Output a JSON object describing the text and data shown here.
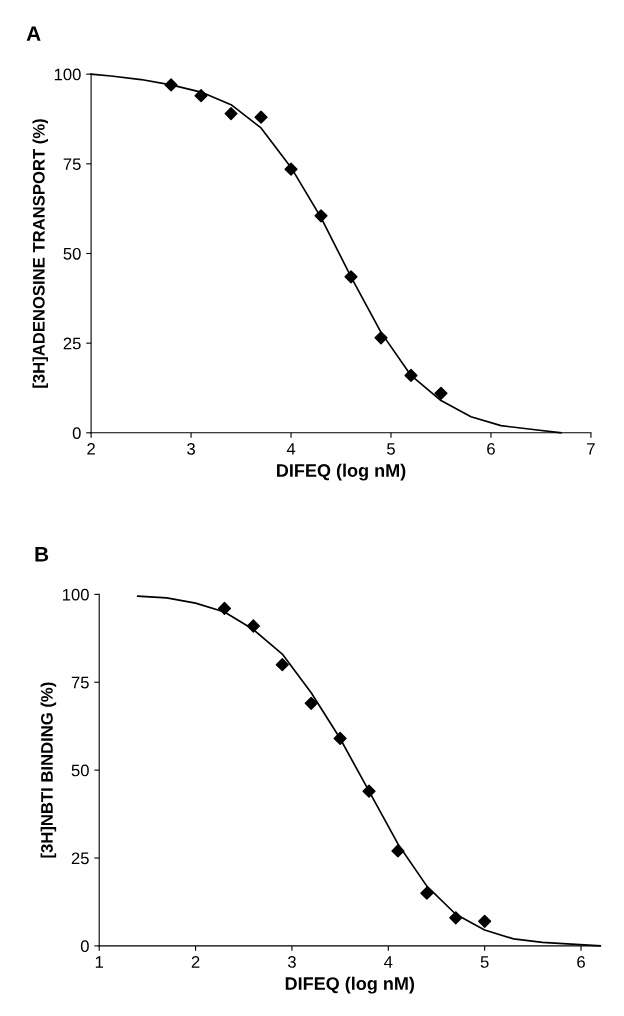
{
  "chart_data": [
    {
      "type": "scatter",
      "title": "A",
      "xlabel": "DIFEQ (log nM)",
      "ylabel": "[3H]ADENOSINE TRANSPORT (%)",
      "xlim": [
        2,
        7
      ],
      "xticks": [
        2,
        3,
        4,
        5,
        6,
        7
      ],
      "ylim": [
        0,
        100
      ],
      "yticks": [
        0,
        25,
        50,
        75,
        100
      ],
      "grid": false,
      "legend": false,
      "series": [
        {
          "color": "#000000",
          "marker": "diamond",
          "x": [
            2.8,
            3.1,
            3.4,
            3.7,
            4.0,
            4.3,
            4.6,
            4.9,
            5.2,
            5.5
          ],
          "values": [
            97,
            94,
            89,
            88,
            73.5,
            60.5,
            43.5,
            26.5,
            16,
            11
          ]
        },
        {
          "type": "line",
          "color": "#000000",
          "marker": "none",
          "line_style": "solid",
          "x": [
            2,
            2.2,
            2.5,
            2.8,
            3.1,
            3.4,
            3.7,
            4.0,
            4.3,
            4.6,
            4.9,
            5.2,
            5.5,
            5.8,
            6.1,
            6.4,
            6.7
          ],
          "values": [
            100,
            99.5,
            98.5,
            97,
            95,
            91.5,
            85,
            74,
            60,
            43.5,
            28,
            16,
            9,
            4.5,
            2,
            1,
            0
          ]
        }
      ]
    },
    {
      "type": "scatter",
      "title": "B",
      "xlabel": "DIFEQ (log nM)",
      "ylabel": "[3H]NBTI BINDING (%)",
      "xlim": [
        1,
        6.2
      ],
      "xticks": [
        1,
        2,
        3,
        4,
        5,
        6
      ],
      "ylim": [
        0,
        100
      ],
      "yticks": [
        0,
        25,
        50,
        75,
        100
      ],
      "grid": false,
      "legend": false,
      "series": [
        {
          "color": "#000000",
          "marker": "diamond",
          "x": [
            2.3,
            2.6,
            2.9,
            3.2,
            3.5,
            3.8,
            4.1,
            4.4,
            4.7,
            5.0
          ],
          "values": [
            96,
            91,
            80,
            69,
            59,
            44,
            27,
            15,
            8,
            7
          ]
        },
        {
          "type": "line",
          "color": "#000000",
          "marker": "none",
          "line_style": "solid",
          "x": [
            1.4,
            1.7,
            2.0,
            2.3,
            2.6,
            2.9,
            3.2,
            3.5,
            3.8,
            4.1,
            4.4,
            4.7,
            5.0,
            5.3,
            5.6,
            5.9,
            6.2
          ],
          "values": [
            99.5,
            99,
            97.5,
            95,
            90,
            83,
            72,
            59,
            44,
            29,
            17,
            9,
            4.5,
            2,
            1,
            0.5,
            0
          ]
        }
      ]
    }
  ]
}
